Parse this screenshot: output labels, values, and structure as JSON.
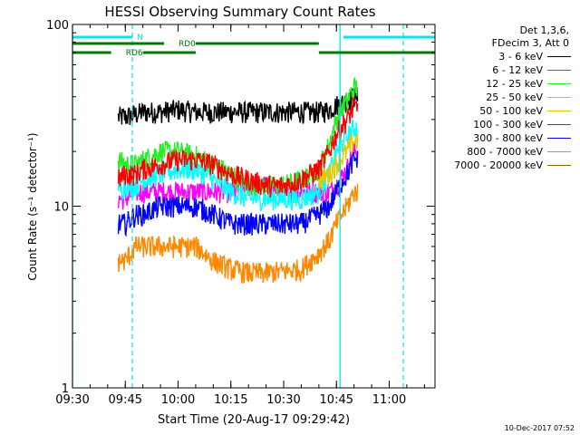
{
  "colors": {
    "background": "#ffffff",
    "axis": "#000000",
    "cyan_markers": "#00e5ee",
    "green_markers": "#007a00"
  },
  "legend": {
    "header_lines": [
      "Det 1,3,6,",
      "FDecim 3, Att 0"
    ],
    "entries": [
      {
        "label": "3 - 6 keV",
        "color": "#000000"
      },
      {
        "label": "6 - 12 keV",
        "color": "#ff00ff"
      },
      {
        "label": "12 - 25 keV",
        "color": "#22ee22"
      },
      {
        "label": "25 - 50 keV",
        "color": "#00ffff"
      },
      {
        "label": "50 - 100 keV",
        "color": "#e6c800"
      },
      {
        "label": "100 - 300 keV",
        "color": "#ff0000"
      },
      {
        "label": "300 - 800 keV",
        "color": "#0000ff"
      },
      {
        "label": "800 - 7000 keV",
        "color": "#ff8800"
      },
      {
        "label": "7000 - 20000 keV",
        "color": "#8a6a00"
      }
    ]
  },
  "footer": {
    "date": "10-Dec-2017 07:52"
  },
  "chart_data": {
    "type": "line",
    "title": "HESSI Observing Summary Count Rates",
    "xlabel": "Start Time (20-Aug-17 09:29:42)",
    "ylabel": "Count Rate (s⁻¹ detector⁻¹)",
    "y_scale": "log",
    "ylim": [
      1,
      100
    ],
    "y_ticks": [
      1,
      10,
      100
    ],
    "y_tick_labels": [
      "1",
      "10",
      "100"
    ],
    "xlim": [
      "09:30",
      "11:13"
    ],
    "x_ticks": [
      "09:30",
      "09:45",
      "10:00",
      "10:15",
      "10:30",
      "10:45",
      "11:00"
    ],
    "grid": false,
    "legend_position": "right",
    "data_start": "09:43",
    "data_end": "10:51",
    "series": [
      {
        "name": "3 - 6 keV",
        "color": "#000000",
        "x": [
          "09:43",
          "09:45",
          "09:48",
          "09:50",
          "09:55",
          "10:00",
          "10:05",
          "10:10",
          "10:15",
          "10:20",
          "10:25",
          "10:30",
          "10:35",
          "10:40",
          "10:43",
          "10:45",
          "10:48",
          "10:50",
          "10:51"
        ],
        "values": [
          31,
          31,
          32,
          33,
          33,
          34,
          33,
          33,
          33,
          33,
          33,
          33,
          33,
          33,
          34,
          36,
          38,
          40,
          40
        ]
      },
      {
        "name": "6 - 12 keV",
        "color": "#ff00ff",
        "x": [
          "09:43",
          "09:45",
          "09:48",
          "09:50",
          "09:55",
          "10:00",
          "10:05",
          "10:10",
          "10:15",
          "10:20",
          "10:25",
          "10:30",
          "10:35",
          "10:40",
          "10:43",
          "10:45",
          "10:48",
          "10:50",
          "10:51"
        ],
        "values": [
          11,
          11,
          12,
          12,
          12,
          12,
          12,
          12,
          12,
          13,
          13,
          12,
          12,
          12,
          12,
          13,
          16,
          20,
          20
        ]
      },
      {
        "name": "12 - 25 keV",
        "color": "#22ee22",
        "x": [
          "09:43",
          "09:45",
          "09:48",
          "09:50",
          "09:55",
          "10:00",
          "10:05",
          "10:10",
          "10:15",
          "10:20",
          "10:25",
          "10:30",
          "10:35",
          "10:40",
          "10:43",
          "10:45",
          "10:48",
          "10:50",
          "10:51"
        ],
        "values": [
          18,
          17,
          17,
          18,
          20,
          20,
          19,
          17,
          15,
          13,
          13,
          13,
          14,
          16,
          22,
          30,
          38,
          45,
          45
        ]
      },
      {
        "name": "25 - 50 keV",
        "color": "#00ffff",
        "x": [
          "09:43",
          "09:45",
          "09:48",
          "09:50",
          "09:55",
          "10:00",
          "10:05",
          "10:10",
          "10:15",
          "10:20",
          "10:25",
          "10:30",
          "10:35",
          "10:40",
          "10:43",
          "10:45",
          "10:48",
          "10:50",
          "10:51"
        ],
        "values": [
          12,
          13,
          13,
          14,
          15,
          16,
          16,
          14,
          12,
          11,
          11,
          11,
          11,
          12,
          15,
          20,
          24,
          27,
          27
        ]
      },
      {
        "name": "50 - 100 keV",
        "color": "#e6c800",
        "x": [
          "10:40",
          "10:43",
          "10:45",
          "10:48",
          "10:50",
          "10:51"
        ],
        "values": [
          14,
          15,
          17,
          20,
          23,
          23
        ]
      },
      {
        "name": "100 - 300 keV",
        "color": "#ff0000",
        "x": [
          "09:43",
          "09:45",
          "09:48",
          "09:50",
          "09:55",
          "10:00",
          "10:05",
          "10:10",
          "10:15",
          "10:20",
          "10:25",
          "10:30",
          "10:35",
          "10:40",
          "10:43",
          "10:45",
          "10:48",
          "10:50",
          "10:51"
        ],
        "values": [
          14,
          15,
          15,
          16,
          17,
          18,
          18,
          17,
          15,
          14,
          13,
          13,
          14,
          16,
          20,
          25,
          30,
          35,
          35
        ]
      },
      {
        "name": "300 - 800 keV",
        "color": "#0000ff",
        "x": [
          "09:43",
          "09:45",
          "09:48",
          "09:50",
          "09:55",
          "10:00",
          "10:05",
          "10:10",
          "10:15",
          "10:20",
          "10:25",
          "10:30",
          "10:35",
          "10:40",
          "10:43",
          "10:45",
          "10:48",
          "10:50",
          "10:51"
        ],
        "values": [
          8,
          8,
          9,
          9,
          10,
          10,
          10,
          9,
          8,
          8,
          8,
          8,
          8,
          9,
          10,
          12,
          15,
          18,
          18
        ]
      },
      {
        "name": "800 - 7000 keV",
        "color": "#ff8800",
        "x": [
          "09:43",
          "09:45",
          "09:48",
          "09:50",
          "09:55",
          "10:00",
          "10:05",
          "10:10",
          "10:15",
          "10:20",
          "10:25",
          "10:30",
          "10:35",
          "10:40",
          "10:43",
          "10:45",
          "10:48",
          "10:50",
          "10:51"
        ],
        "values": [
          5,
          5,
          6,
          6,
          6,
          6,
          6,
          5,
          4.5,
          4.3,
          4.3,
          4.4,
          4.5,
          5.5,
          6.5,
          8,
          10,
          12,
          12
        ]
      }
    ],
    "markers": {
      "N": {
        "label": "N",
        "color": "#00e5ee",
        "bars": [
          [
            "09:30",
            "09:47"
          ],
          [
            "10:47",
            "11:13"
          ]
        ]
      },
      "RD0": {
        "label": "RD0",
        "color": "#007a00",
        "bars": [
          [
            "09:30",
            "09:56"
          ],
          [
            "10:05",
            "10:40"
          ]
        ]
      },
      "RD6": {
        "label": "RD6",
        "color": "#007a00",
        "bars": [
          [
            "09:30",
            "09:41"
          ],
          [
            "09:50",
            "10:05"
          ],
          [
            "10:40",
            "11:13"
          ]
        ]
      },
      "vlines_solid": [
        "09:30",
        "10:46"
      ],
      "vlines_dashed": [
        "09:47",
        "11:04"
      ]
    }
  }
}
